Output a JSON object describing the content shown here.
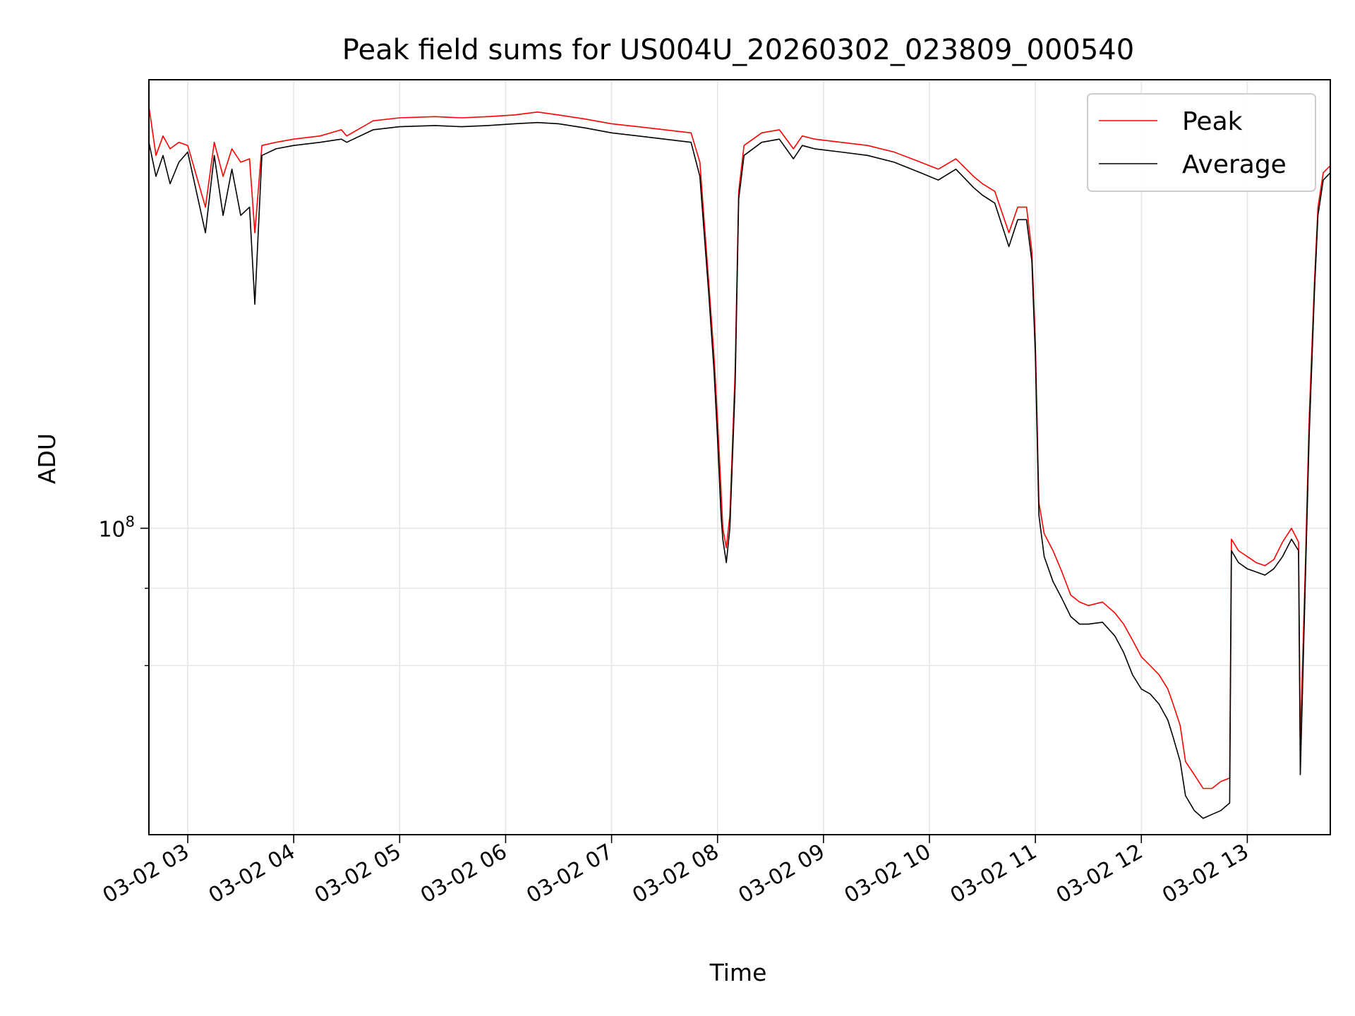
{
  "chart_data": {
    "type": "line",
    "title": "Peak field sums for US004U_20260302_023809_000540",
    "xlabel": "Time",
    "ylabel": "ADU",
    "yscale": "log",
    "xlim": [
      "2026-03-02 02:38",
      "2026-03-02 13:47"
    ],
    "ylim": [
      32000000,
      530000000
    ],
    "x_ticks": [
      "03-02 03",
      "03-02 04",
      "03-02 05",
      "03-02 06",
      "03-02 07",
      "03-02 08",
      "03-02 09",
      "03-02 10",
      "03-02 11",
      "03-02 12",
      "03-02 13"
    ],
    "y_ticks": [
      {
        "value": 100000000,
        "label_base": "10",
        "label_exp": "8"
      }
    ],
    "y_minor_ticks": [
      60000000,
      80000000
    ],
    "grid": true,
    "legend_position": "top-right",
    "series": [
      {
        "name": "Peak",
        "color": "#ff0000",
        "x": [
          "2026-03-02 02:38",
          "2026-03-02 02:42",
          "2026-03-02 02:46",
          "2026-03-02 02:50",
          "2026-03-02 02:55",
          "2026-03-02 03:00",
          "2026-03-02 03:10",
          "2026-03-02 03:15",
          "2026-03-02 03:20",
          "2026-03-02 03:25",
          "2026-03-02 03:30",
          "2026-03-02 03:35",
          "2026-03-02 03:38",
          "2026-03-02 03:42",
          "2026-03-02 03:50",
          "2026-03-02 04:00",
          "2026-03-02 04:15",
          "2026-03-02 04:27",
          "2026-03-02 04:30",
          "2026-03-02 04:45",
          "2026-03-02 05:00",
          "2026-03-02 05:20",
          "2026-03-02 05:35",
          "2026-03-02 05:50",
          "2026-03-02 06:05",
          "2026-03-02 06:18",
          "2026-03-02 06:30",
          "2026-03-02 06:45",
          "2026-03-02 07:00",
          "2026-03-02 07:15",
          "2026-03-02 07:30",
          "2026-03-02 07:45",
          "2026-03-02 07:50",
          "2026-03-02 07:55",
          "2026-03-02 07:58",
          "2026-03-02 08:00",
          "2026-03-02 08:02",
          "2026-03-02 08:03",
          "2026-03-02 08:05",
          "2026-03-02 08:07",
          "2026-03-02 08:10",
          "2026-03-02 08:12",
          "2026-03-02 08:15",
          "2026-03-02 08:25",
          "2026-03-02 08:35",
          "2026-03-02 08:43",
          "2026-03-02 08:48",
          "2026-03-02 08:55",
          "2026-03-02 09:10",
          "2026-03-02 09:25",
          "2026-03-02 09:40",
          "2026-03-02 09:55",
          "2026-03-02 10:05",
          "2026-03-02 10:15",
          "2026-03-02 10:25",
          "2026-03-02 10:30",
          "2026-03-02 10:37",
          "2026-03-02 10:45",
          "2026-03-02 10:50",
          "2026-03-02 10:55",
          "2026-03-02 10:58",
          "2026-03-02 11:00",
          "2026-03-02 11:02",
          "2026-03-02 11:05",
          "2026-03-02 11:10",
          "2026-03-02 11:15",
          "2026-03-02 11:20",
          "2026-03-02 11:25",
          "2026-03-02 11:30",
          "2026-03-02 11:38",
          "2026-03-02 11:45",
          "2026-03-02 11:50",
          "2026-03-02 11:55",
          "2026-03-02 12:00",
          "2026-03-02 12:05",
          "2026-03-02 12:10",
          "2026-03-02 12:15",
          "2026-03-02 12:18",
          "2026-03-02 12:22",
          "2026-03-02 12:25",
          "2026-03-02 12:30",
          "2026-03-02 12:35",
          "2026-03-02 12:40",
          "2026-03-02 12:45",
          "2026-03-02 12:50",
          "2026-03-02 12:51",
          "2026-03-02 12:55",
          "2026-03-02 13:00",
          "2026-03-02 13:05",
          "2026-03-02 13:10",
          "2026-03-02 13:15",
          "2026-03-02 13:20",
          "2026-03-02 13:25",
          "2026-03-02 13:29",
          "2026-03-02 13:30",
          "2026-03-02 13:33",
          "2026-03-02 13:35",
          "2026-03-02 13:38",
          "2026-03-02 13:40",
          "2026-03-02 13:43",
          "2026-03-02 13:47"
        ],
        "values": [
          480000000,
          400000000,
          430000000,
          410000000,
          420000000,
          415000000,
          330000000,
          420000000,
          370000000,
          410000000,
          390000000,
          395000000,
          300000000,
          415000000,
          420000000,
          425000000,
          430000000,
          440000000,
          430000000,
          455000000,
          460000000,
          462000000,
          460000000,
          462000000,
          465000000,
          470000000,
          465000000,
          458000000,
          450000000,
          445000000,
          440000000,
          435000000,
          390000000,
          250000000,
          190000000,
          150000000,
          115000000,
          100000000,
          93000000,
          105000000,
          180000000,
          350000000,
          415000000,
          435000000,
          440000000,
          410000000,
          430000000,
          425000000,
          420000000,
          415000000,
          405000000,
          390000000,
          380000000,
          395000000,
          370000000,
          360000000,
          350000000,
          300000000,
          330000000,
          330000000,
          280000000,
          200000000,
          110000000,
          98000000,
          92000000,
          85000000,
          78000000,
          76000000,
          75000000,
          76000000,
          73000000,
          70000000,
          66000000,
          62000000,
          60000000,
          58000000,
          55000000,
          52000000,
          48000000,
          42000000,
          40000000,
          38000000,
          38000000,
          39000000,
          39500000,
          96000000,
          92000000,
          90000000,
          88000000,
          87000000,
          89000000,
          95000000,
          100000000,
          95000000,
          45000000,
          90000000,
          150000000,
          250000000,
          330000000,
          375000000,
          385000000
        ]
      },
      {
        "name": "Average",
        "color": "#000000",
        "x": [
          "2026-03-02 02:38",
          "2026-03-02 02:42",
          "2026-03-02 02:46",
          "2026-03-02 02:50",
          "2026-03-02 02:55",
          "2026-03-02 03:00",
          "2026-03-02 03:10",
          "2026-03-02 03:15",
          "2026-03-02 03:20",
          "2026-03-02 03:25",
          "2026-03-02 03:30",
          "2026-03-02 03:35",
          "2026-03-02 03:38",
          "2026-03-02 03:42",
          "2026-03-02 03:50",
          "2026-03-02 04:00",
          "2026-03-02 04:15",
          "2026-03-02 04:27",
          "2026-03-02 04:30",
          "2026-03-02 04:45",
          "2026-03-02 05:00",
          "2026-03-02 05:20",
          "2026-03-02 05:35",
          "2026-03-02 05:50",
          "2026-03-02 06:05",
          "2026-03-02 06:18",
          "2026-03-02 06:30",
          "2026-03-02 06:45",
          "2026-03-02 07:00",
          "2026-03-02 07:15",
          "2026-03-02 07:30",
          "2026-03-02 07:45",
          "2026-03-02 07:50",
          "2026-03-02 07:55",
          "2026-03-02 07:58",
          "2026-03-02 08:00",
          "2026-03-02 08:02",
          "2026-03-02 08:03",
          "2026-03-02 08:05",
          "2026-03-02 08:07",
          "2026-03-02 08:10",
          "2026-03-02 08:12",
          "2026-03-02 08:15",
          "2026-03-02 08:25",
          "2026-03-02 08:35",
          "2026-03-02 08:43",
          "2026-03-02 08:48",
          "2026-03-02 08:55",
          "2026-03-02 09:10",
          "2026-03-02 09:25",
          "2026-03-02 09:40",
          "2026-03-02 09:55",
          "2026-03-02 10:05",
          "2026-03-02 10:15",
          "2026-03-02 10:25",
          "2026-03-02 10:30",
          "2026-03-02 10:37",
          "2026-03-02 10:45",
          "2026-03-02 10:50",
          "2026-03-02 10:55",
          "2026-03-02 10:58",
          "2026-03-02 11:00",
          "2026-03-02 11:02",
          "2026-03-02 11:05",
          "2026-03-02 11:10",
          "2026-03-02 11:15",
          "2026-03-02 11:20",
          "2026-03-02 11:25",
          "2026-03-02 11:30",
          "2026-03-02 11:38",
          "2026-03-02 11:45",
          "2026-03-02 11:50",
          "2026-03-02 11:55",
          "2026-03-02 12:00",
          "2026-03-02 12:05",
          "2026-03-02 12:10",
          "2026-03-02 12:15",
          "2026-03-02 12:18",
          "2026-03-02 12:22",
          "2026-03-02 12:25",
          "2026-03-02 12:30",
          "2026-03-02 12:35",
          "2026-03-02 12:40",
          "2026-03-02 12:45",
          "2026-03-02 12:50",
          "2026-03-02 12:51",
          "2026-03-02 12:55",
          "2026-03-02 13:00",
          "2026-03-02 13:05",
          "2026-03-02 13:10",
          "2026-03-02 13:15",
          "2026-03-02 13:20",
          "2026-03-02 13:25",
          "2026-03-02 13:29",
          "2026-03-02 13:30",
          "2026-03-02 13:33",
          "2026-03-02 13:35",
          "2026-03-02 13:38",
          "2026-03-02 13:40",
          "2026-03-02 13:43",
          "2026-03-02 13:47"
        ],
        "values": [
          420000000,
          370000000,
          400000000,
          360000000,
          390000000,
          405000000,
          300000000,
          400000000,
          320000000,
          380000000,
          320000000,
          330000000,
          230000000,
          400000000,
          410000000,
          415000000,
          420000000,
          425000000,
          420000000,
          440000000,
          445000000,
          447000000,
          445000000,
          447000000,
          450000000,
          452000000,
          450000000,
          443000000,
          435000000,
          430000000,
          425000000,
          420000000,
          370000000,
          240000000,
          180000000,
          140000000,
          105000000,
          96000000,
          88000000,
          100000000,
          170000000,
          340000000,
          400000000,
          420000000,
          425000000,
          395000000,
          415000000,
          410000000,
          405000000,
          400000000,
          390000000,
          375000000,
          365000000,
          380000000,
          355000000,
          345000000,
          335000000,
          285000000,
          315000000,
          315000000,
          270000000,
          190000000,
          105000000,
          90000000,
          82000000,
          77000000,
          72000000,
          70000000,
          70000000,
          70500000,
          67000000,
          63000000,
          58000000,
          55000000,
          54000000,
          52000000,
          49000000,
          46000000,
          42000000,
          37000000,
          35000000,
          34000000,
          34500000,
          35000000,
          36000000,
          92000000,
          88000000,
          86000000,
          85000000,
          84000000,
          86000000,
          90000000,
          96000000,
          92000000,
          40000000,
          85000000,
          140000000,
          240000000,
          320000000,
          365000000,
          375000000
        ]
      }
    ]
  }
}
